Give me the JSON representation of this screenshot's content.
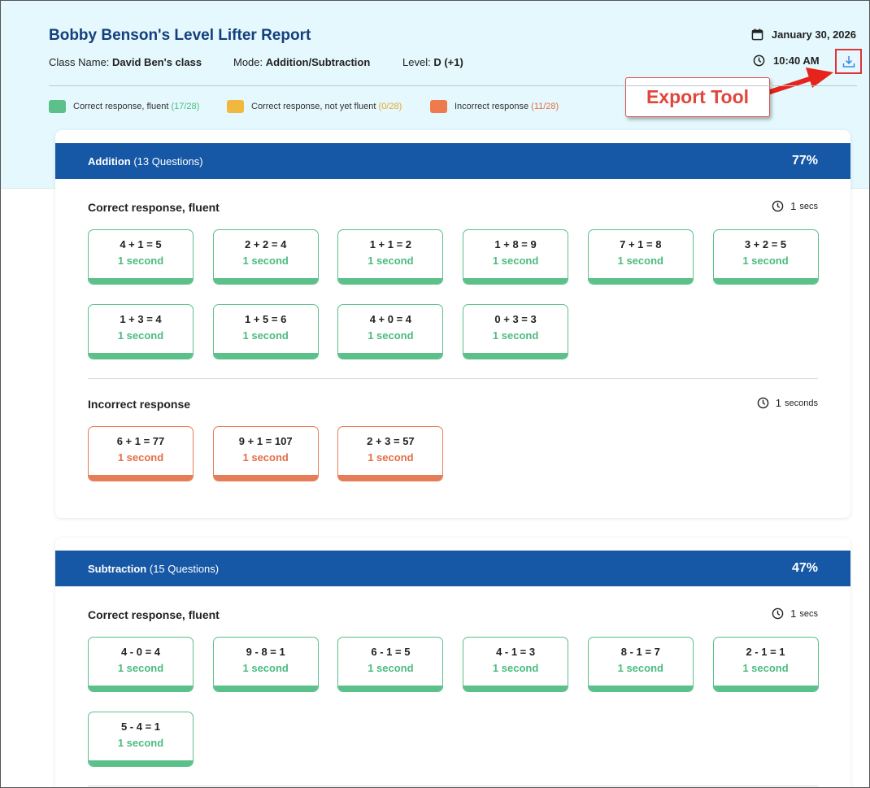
{
  "report": {
    "title": "Bobby Benson's Level Lifter Report",
    "class_label": "Class Name:",
    "class_value": "David Ben's class",
    "mode_label": "Mode:",
    "mode_value": "Addition/Subtraction",
    "level_label": "Level:",
    "level_value": "D (+1)",
    "date": "January 30, 2026",
    "time": "10:40 AM"
  },
  "legend": [
    {
      "label": "Correct response, fluent",
      "count": "(17/28)",
      "color": "#5cc08a"
    },
    {
      "label": "Correct response, not yet fluent",
      "count": "(0/28)",
      "color": "#f0b83c"
    },
    {
      "label": "Incorrect response",
      "count": "(11/28)",
      "color": "#ef7a4e"
    }
  ],
  "callout": {
    "label": "Export Tool"
  },
  "sections": [
    {
      "name": "Addition",
      "questions": "(13 Questions)",
      "percent": "77%",
      "groups": [
        {
          "title": "Correct response, fluent",
          "time_value": "1",
          "time_unit": "secs",
          "tiles": [
            {
              "eq": "4 + 1 = 5",
              "time": "1 second"
            },
            {
              "eq": "2 + 2 = 4",
              "time": "1 second"
            },
            {
              "eq": "1 + 1 = 2",
              "time": "1 second"
            },
            {
              "eq": "1 + 8 = 9",
              "time": "1 second"
            },
            {
              "eq": "7 + 1 = 8",
              "time": "1 second"
            },
            {
              "eq": "3 + 2 = 5",
              "time": "1 second"
            },
            {
              "eq": "1 + 3 = 4",
              "time": "1 second"
            },
            {
              "eq": "1 + 5 = 6",
              "time": "1 second"
            },
            {
              "eq": "4 + 0 = 4",
              "time": "1 second"
            },
            {
              "eq": "0 + 3 = 3",
              "time": "1 second"
            }
          ]
        },
        {
          "title": "Incorrect response",
          "time_value": "1",
          "time_unit": "seconds",
          "tiles": [
            {
              "eq": "6 + 1 = 77",
              "time": "1 second"
            },
            {
              "eq": "9 + 1 = 107",
              "time": "1 second"
            },
            {
              "eq": "2 + 3 = 57",
              "time": "1 second"
            }
          ]
        }
      ]
    },
    {
      "name": "Subtraction",
      "questions": "(15 Questions)",
      "percent": "47%",
      "groups": [
        {
          "title": "Correct response, fluent",
          "time_value": "1",
          "time_unit": "secs",
          "tiles": [
            {
              "eq": "4 - 0 = 4",
              "time": "1 second"
            },
            {
              "eq": "9 - 8 = 1",
              "time": "1 second"
            },
            {
              "eq": "6 - 1 = 5",
              "time": "1 second"
            },
            {
              "eq": "4 - 1 = 3",
              "time": "1 second"
            },
            {
              "eq": "8 - 1 = 7",
              "time": "1 second"
            },
            {
              "eq": "2 - 1 = 1",
              "time": "1 second"
            },
            {
              "eq": "5 - 4 = 1",
              "time": "1 second"
            }
          ]
        }
      ]
    }
  ]
}
